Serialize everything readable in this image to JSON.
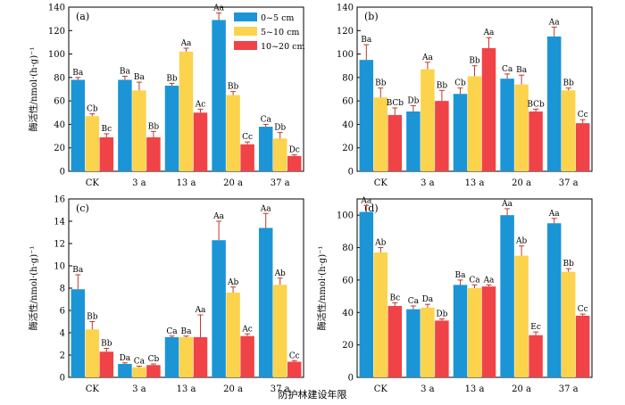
{
  "figure": {
    "shared_xlabel": "防护林建设年限",
    "colors": {
      "s1": "#1b95d6",
      "s2": "#fbd34d",
      "s3": "#f04347",
      "error": "#c0392b"
    }
  },
  "chart_data": [
    {
      "type": "bar",
      "panel_label": "(a)",
      "categories": [
        "CK",
        "3 a",
        "13 a",
        "20 a",
        "37 a"
      ],
      "ylabel": "酶活性/nmol·(h·g)⁻¹",
      "ylim": [
        0,
        140
      ],
      "yticks": [
        0,
        20,
        40,
        60,
        80,
        100,
        120,
        140
      ],
      "legend": {
        "position": "top-right",
        "entries": [
          "0~5 cm",
          "5~10 cm",
          "10~20 cm"
        ]
      },
      "series": [
        {
          "name": "0~5 cm",
          "values": [
            78,
            78,
            73,
            129,
            38
          ],
          "errors": [
            2,
            3,
            2,
            6,
            2
          ],
          "labels": [
            "Ba",
            "Ba",
            "Bb",
            "Aa",
            "Ca"
          ]
        },
        {
          "name": "5~10 cm",
          "values": [
            47,
            69,
            102,
            65,
            28
          ],
          "errors": [
            2,
            7,
            3,
            3,
            5
          ],
          "labels": [
            "Cb",
            "Ba",
            "Aa",
            "Bb",
            "Db"
          ]
        },
        {
          "name": "10~20 cm",
          "values": [
            29,
            29,
            50,
            23,
            13
          ],
          "errors": [
            3,
            5,
            3,
            2,
            1
          ],
          "labels": [
            "Bc",
            "Bb",
            "Ac",
            "Cc",
            "Dc"
          ]
        }
      ]
    },
    {
      "type": "bar",
      "panel_label": "(b)",
      "categories": [
        "CK",
        "3 a",
        "13 a",
        "20 a",
        "37 a"
      ],
      "ylabel": "",
      "ylim": [
        0,
        140
      ],
      "yticks": [
        0,
        20,
        40,
        60,
        80,
        100,
        120,
        140
      ],
      "series": [
        {
          "name": "0~5 cm",
          "values": [
            95,
            51,
            66,
            79,
            115
          ],
          "errors": [
            13,
            5,
            5,
            4,
            8
          ],
          "labels": [
            "Ba",
            "Db",
            "Cb",
            "Ca",
            "Aa"
          ]
        },
        {
          "name": "5~10 cm",
          "values": [
            63,
            87,
            81,
            74,
            69
          ],
          "errors": [
            8,
            6,
            9,
            8,
            2
          ],
          "labels": [
            "Bb",
            "Aa",
            "Bb",
            "Ba",
            "Bb"
          ]
        },
        {
          "name": "10~20 cm",
          "values": [
            48,
            60,
            105,
            51,
            41
          ],
          "errors": [
            6,
            9,
            9,
            2,
            3
          ],
          "labels": [
            "BCb",
            "Bb",
            "Aa",
            "BCb",
            "Cc"
          ]
        }
      ]
    },
    {
      "type": "bar",
      "panel_label": "(c)",
      "categories": [
        "CK",
        "3 a",
        "13 a",
        "20 a",
        "37 a"
      ],
      "ylabel": "酶活性/nmol·(h·g)⁻¹",
      "ylim": [
        0,
        16
      ],
      "yticks": [
        0,
        2,
        4,
        6,
        8,
        10,
        12,
        14,
        16
      ],
      "series": [
        {
          "name": "0~5 cm",
          "values": [
            7.9,
            1.2,
            3.6,
            12.3,
            13.4
          ],
          "errors": [
            1.3,
            0.1,
            0.1,
            1.7,
            1.3
          ],
          "labels": [
            "Ba",
            "Da",
            "Ca",
            "Aa",
            "Aa"
          ]
        },
        {
          "name": "5~10 cm",
          "values": [
            4.3,
            0.9,
            3.6,
            7.6,
            8.3
          ],
          "errors": [
            0.7,
            0.1,
            0.1,
            0.5,
            0.6
          ],
          "labels": [
            "Bb",
            "Ca",
            "Ba",
            "Ab",
            "Ab"
          ]
        },
        {
          "name": "10~20 cm",
          "values": [
            2.3,
            1.1,
            3.6,
            3.7,
            1.4
          ],
          "errors": [
            0.3,
            0.1,
            2.0,
            0.2,
            0.1
          ],
          "labels": [
            "Bb",
            "Cb",
            "Aa",
            "Ac",
            "Cc"
          ]
        }
      ]
    },
    {
      "type": "bar",
      "panel_label": "(d)",
      "categories": [
        "CK",
        "3 a",
        "13 a",
        "20 a",
        "37 a"
      ],
      "ylabel": "酶活性/nmol·(h·g)⁻¹",
      "ylim": [
        0,
        110
      ],
      "yticks": [
        0,
        20,
        40,
        60,
        80,
        100
      ],
      "series": [
        {
          "name": "0~5 cm",
          "values": [
            102,
            42,
            57,
            100,
            95
          ],
          "errors": [
            4,
            2,
            3,
            4,
            3
          ],
          "labels": [
            "Aa",
            "Ca",
            "Ba",
            "Aa",
            "Aa"
          ]
        },
        {
          "name": "5~10 cm",
          "values": [
            77,
            43,
            55,
            75,
            65
          ],
          "errors": [
            3,
            2,
            2,
            6,
            2
          ],
          "labels": [
            "Ab",
            "Da",
            "Ca",
            "Ab",
            "Bb"
          ]
        },
        {
          "name": "10~20 cm",
          "values": [
            44,
            35,
            56,
            26,
            38
          ],
          "errors": [
            2,
            1,
            1,
            2,
            1
          ],
          "labels": [
            "Bc",
            "Db",
            "Aa",
            "Ec",
            "Cc"
          ]
        }
      ]
    }
  ]
}
